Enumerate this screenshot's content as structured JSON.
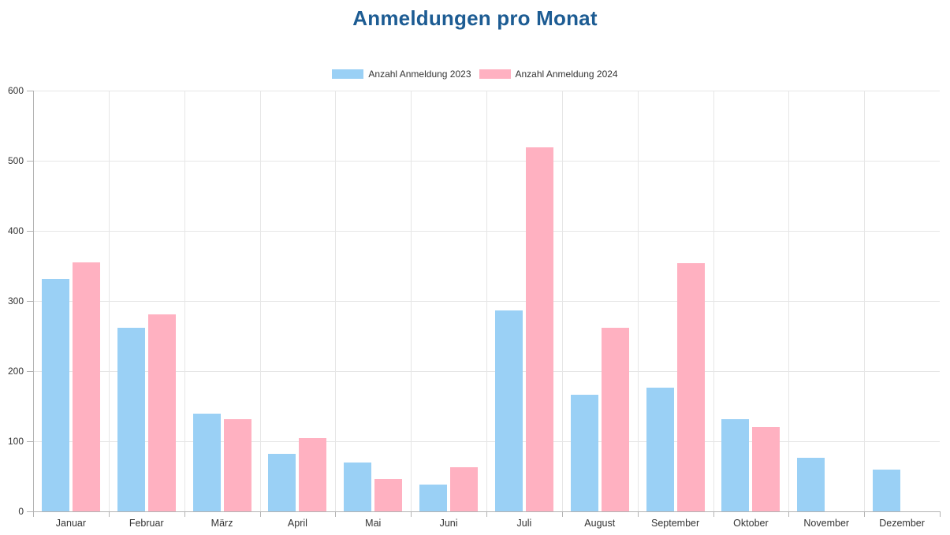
{
  "title": "Anmeldungen pro Monat",
  "colors": {
    "title": "#1D5C93",
    "grid": "#E6E6E6",
    "axis": "#B3B3B3",
    "tick_label": "#333333",
    "series_2023": "#9AD0F5",
    "series_2024": "#FFB1C1"
  },
  "legend": {
    "items": [
      {
        "label": "Anzahl Anmeldung 2023",
        "color": "#9AD0F5"
      },
      {
        "label": "Anzahl Anmeldung 2024",
        "color": "#FFB1C1"
      }
    ]
  },
  "chart_data": {
    "type": "bar",
    "title": "Anmeldungen pro Monat",
    "categories": [
      "Januar",
      "Februar",
      "März",
      "April",
      "Mai",
      "Juni",
      "Juli",
      "August",
      "September",
      "Oktober",
      "November",
      "Dezember"
    ],
    "series": [
      {
        "name": "Anzahl Anmeldung 2023",
        "color": "#9AD0F5",
        "values": [
          331,
          262,
          139,
          82,
          70,
          38,
          286,
          166,
          176,
          131,
          76,
          59
        ]
      },
      {
        "name": "Anzahl Anmeldung 2024",
        "color": "#FFB1C1",
        "values": [
          355,
          281,
          132,
          105,
          46,
          63,
          519,
          262,
          354,
          120,
          null,
          null
        ]
      }
    ],
    "xlabel": "",
    "ylabel": "",
    "ylim": [
      0,
      600
    ],
    "ytick_step": 100,
    "ytick_labels": [
      "0",
      "100",
      "200",
      "300",
      "400",
      "500",
      "600"
    ],
    "grid": true,
    "legend_position": "top"
  }
}
